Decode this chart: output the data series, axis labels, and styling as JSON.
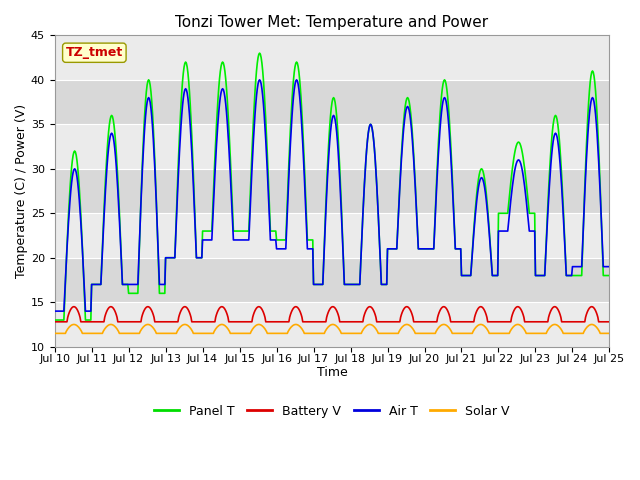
{
  "title": "Tonzi Tower Met: Temperature and Power",
  "xlabel": "Time",
  "ylabel": "Temperature (C) / Power (V)",
  "ylim": [
    10,
    45
  ],
  "xlim": [
    0,
    15
  ],
  "x_tick_labels": [
    "Jul 10",
    "Jul 11",
    "Jul 12",
    "Jul 13",
    "Jul 14",
    "Jul 15",
    "Jul 16",
    "Jul 17",
    "Jul 18",
    "Jul 19",
    "Jul 20",
    "Jul 21",
    "Jul 22",
    "Jul 23",
    "Jul 24",
    "Jul 25"
  ],
  "legend_entries": [
    "Panel T",
    "Battery V",
    "Air T",
    "Solar V"
  ],
  "legend_colors": [
    "#00dd00",
    "#dd0000",
    "#0000dd",
    "#ffaa00"
  ],
  "annotation_text": "TZ_tmet",
  "annotation_color": "#cc0000",
  "annotation_bg": "#ffffcc",
  "bg_light": "#ebebeb",
  "bg_dark": "#d8d8d8",
  "panel_t_color": "#00ee00",
  "battery_v_color": "#dd0000",
  "air_t_color": "#0000ee",
  "solar_v_color": "#ffaa00",
  "line_width": 1.2,
  "yticks": [
    10,
    15,
    20,
    25,
    30,
    35,
    40,
    45
  ],
  "title_fontsize": 11,
  "tick_fontsize": 8,
  "label_fontsize": 9,
  "legend_fontsize": 9
}
